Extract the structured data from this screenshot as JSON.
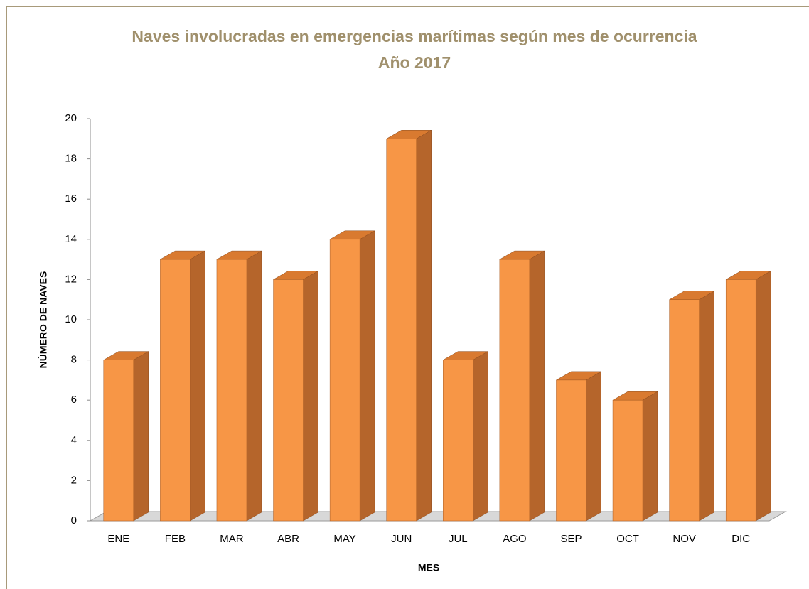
{
  "chart_data": {
    "type": "bar3d",
    "title": "Naves involucradas en emergencias  marítimas según mes de ocurrencia",
    "subtitle": "Año 2017",
    "x_label": "MES",
    "y_label": "NÚMERO DE NAVES",
    "categories": [
      "ENE",
      "FEB",
      "MAR",
      "ABR",
      "MAY",
      "JUN",
      "JUL",
      "AGO",
      "SEP",
      "OCT",
      "NOV",
      "DIC"
    ],
    "values": [
      8,
      13,
      13,
      12,
      14,
      19,
      8,
      13,
      7,
      6,
      11,
      12
    ],
    "color": "#f79646",
    "ylim": [
      0,
      20
    ],
    "yticks": [
      0,
      2,
      4,
      6,
      8,
      10,
      12,
      14,
      16,
      18,
      20
    ]
  }
}
